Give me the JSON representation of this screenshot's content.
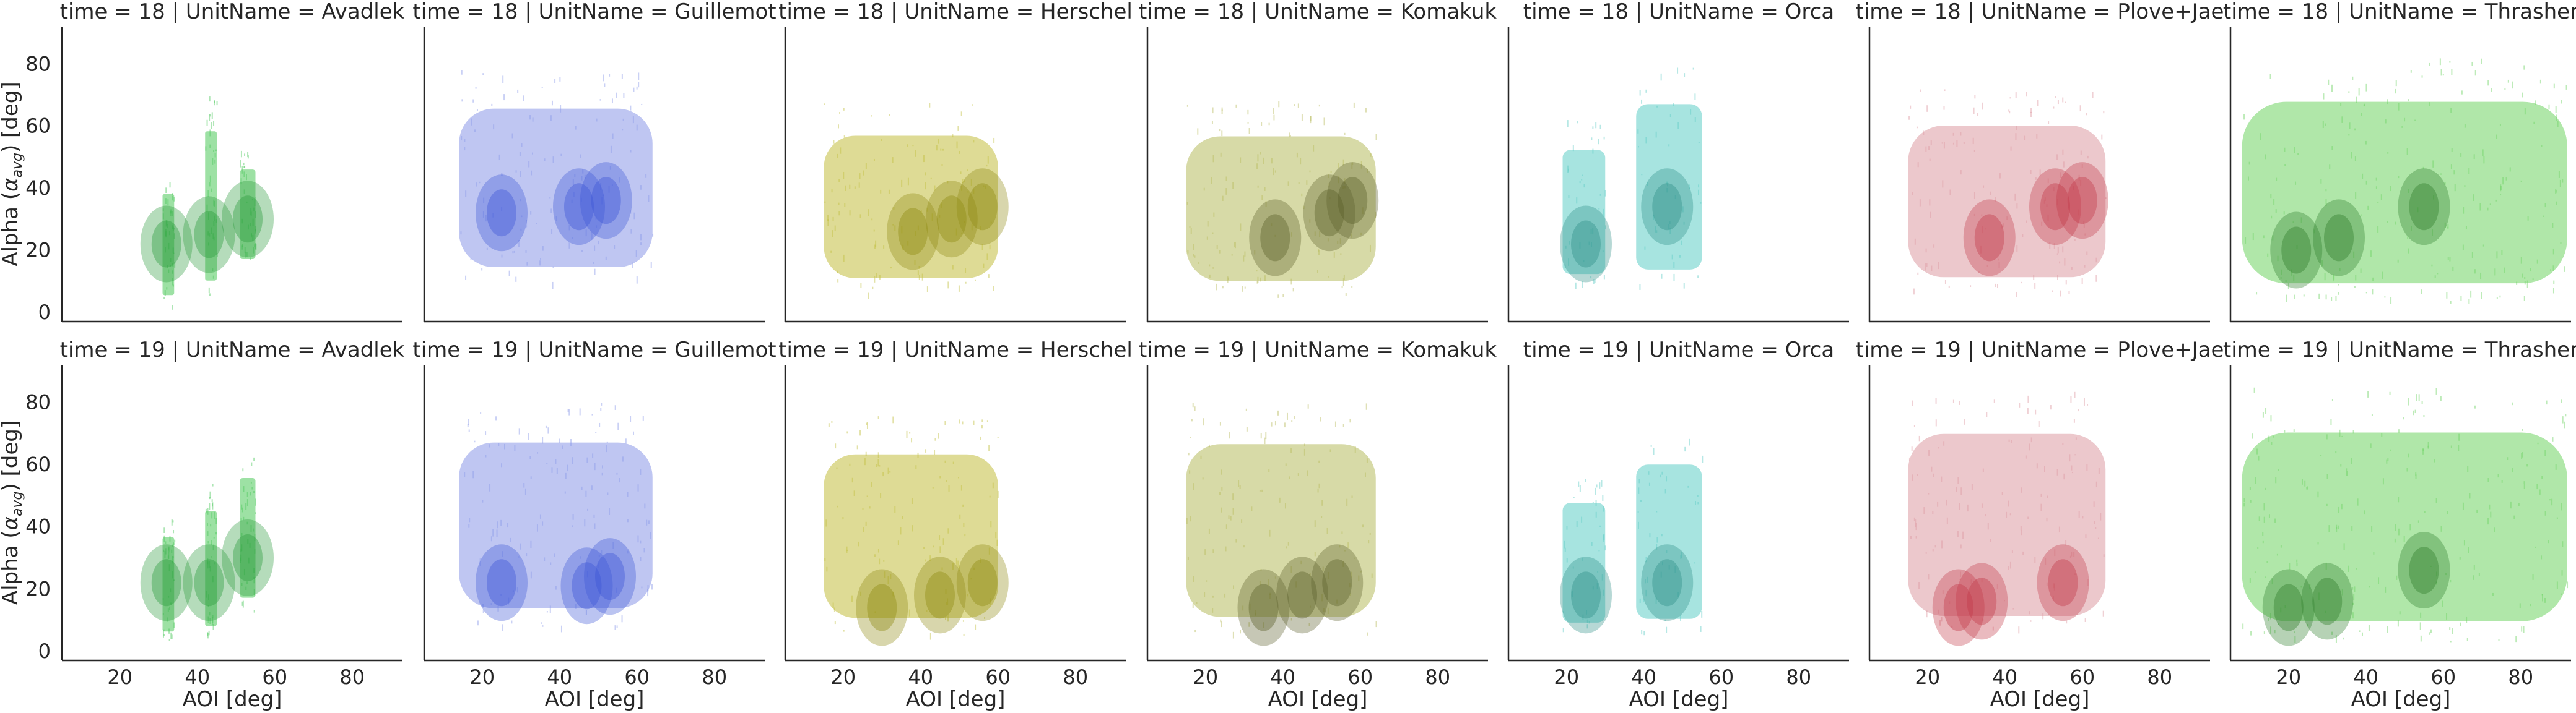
{
  "chart_data": {
    "type": "scatter",
    "layout": "facet-grid",
    "row_variable": "time",
    "col_variable": "UnitName",
    "rows": [
      18,
      19
    ],
    "columns": [
      "Avadlek",
      "Guillemot",
      "Herschel",
      "Komakuk",
      "Orca",
      "Plove+Jae",
      "Thrasher"
    ],
    "facet_titles": [
      [
        "time = 18 | UnitName = Avadlek",
        "time = 18 | UnitName = Guillemot",
        "time = 18 | UnitName = Herschel",
        "time = 18 | UnitName = Komakuk",
        "time = 18 | UnitName = Orca",
        "time = 18 | UnitName = Plove+Jae",
        "time = 18 | UnitName = Thrasher"
      ],
      [
        "time = 19 | UnitName = Avadlek",
        "time = 19 | UnitName = Guillemot",
        "time = 19 | UnitName = Herschel",
        "time = 19 | UnitName = Komakuk",
        "time = 19 | UnitName = Orca",
        "time = 19 | UnitName = Plove+Jae",
        "time = 19 | UnitName = Thrasher"
      ]
    ],
    "xlabel": "AOI [deg]",
    "ylabel_main": "Alpha (",
    "ylabel_sym": "α",
    "ylabel_sub": "avg",
    "ylabel_end": ") [deg]",
    "xlim": [
      5,
      93
    ],
    "ylim": [
      -3,
      92
    ],
    "xticks": [
      "20",
      "40",
      "60",
      "80"
    ],
    "yticks": [
      "0",
      "20",
      "40",
      "60",
      "80"
    ],
    "xtick_values": [
      20,
      40,
      60,
      80
    ],
    "ytick_values": [
      0,
      20,
      40,
      60,
      80
    ],
    "grid": false,
    "shared_axes": true,
    "colors": {
      "Avadlek": "#4cc85a",
      "Guillemot": "#8a98e8",
      "Herschel": "#c2be3e",
      "Komakuk": "#b7bb5e",
      "Orca": "#5fcdc6",
      "Plove+Jae": "#dd9aa2",
      "Thrasher": "#6fd363"
    },
    "dense_colors": {
      "Avadlek": "#2a9a3c",
      "Guillemot": "#3c55d8",
      "Herschel": "#8f8a12",
      "Komakuk": "#5b5e2a",
      "Orca": "#2f8f88",
      "Plove+Jae": "#c23a48",
      "Thrasher": "#2f7d2b"
    },
    "series": [
      {
        "time": 18,
        "unit": "Avadlek",
        "bands": [
          [
            31,
            34,
            2,
            46
          ],
          [
            42,
            45,
            5,
            70
          ],
          [
            51,
            55,
            14,
            53
          ]
        ],
        "hot": [
          [
            32,
            22
          ],
          [
            43,
            25
          ],
          [
            53,
            30
          ]
        ]
      },
      {
        "time": 18,
        "unit": "Guillemot",
        "bands": [
          [
            14,
            64,
            9,
            78
          ]
        ],
        "hot": [
          [
            45,
            34
          ],
          [
            52,
            36
          ],
          [
            25,
            32
          ]
        ]
      },
      {
        "time": 18,
        "unit": "Herschel",
        "bands": [
          [
            15,
            60,
            6,
            68
          ]
        ],
        "hot": [
          [
            38,
            26
          ],
          [
            48,
            30
          ],
          [
            56,
            34
          ]
        ]
      },
      {
        "time": 18,
        "unit": "Komakuk",
        "bands": [
          [
            15,
            64,
            5,
            68
          ]
        ],
        "hot": [
          [
            38,
            24
          ],
          [
            52,
            32
          ],
          [
            58,
            36
          ]
        ]
      },
      {
        "time": 18,
        "unit": "Orca",
        "bands": [
          [
            19,
            30,
            8,
            62
          ],
          [
            38,
            55,
            8,
            80
          ]
        ],
        "hot": [
          [
            25,
            22
          ],
          [
            46,
            34
          ]
        ]
      },
      {
        "time": 18,
        "unit": "Plove+Jae",
        "bands": [
          [
            15,
            66,
            6,
            72
          ]
        ],
        "hot": [
          [
            36,
            24
          ],
          [
            53,
            34
          ],
          [
            60,
            36
          ]
        ]
      },
      {
        "time": 18,
        "unit": "Thrasher",
        "bands": [
          [
            8,
            92,
            3,
            82
          ]
        ],
        "hot": [
          [
            33,
            24
          ],
          [
            55,
            34
          ],
          [
            22,
            20
          ]
        ]
      },
      {
        "time": 19,
        "unit": "Avadlek",
        "bands": [
          [
            31,
            34,
            3,
            44
          ],
          [
            42,
            45,
            4,
            54
          ],
          [
            51,
            55,
            13,
            65
          ]
        ],
        "hot": [
          [
            32,
            22
          ],
          [
            43,
            22
          ],
          [
            53,
            30
          ]
        ]
      },
      {
        "time": 19,
        "unit": "Guillemot",
        "bands": [
          [
            14,
            64,
            8,
            80
          ]
        ],
        "hot": [
          [
            47,
            21
          ],
          [
            53,
            24
          ],
          [
            25,
            22
          ]
        ]
      },
      {
        "time": 19,
        "unit": "Herschel",
        "bands": [
          [
            15,
            60,
            5,
            76
          ]
        ],
        "hot": [
          [
            30,
            14
          ],
          [
            45,
            18
          ],
          [
            56,
            22
          ]
        ]
      },
      {
        "time": 19,
        "unit": "Komakuk",
        "bands": [
          [
            15,
            64,
            5,
            80
          ]
        ],
        "hot": [
          [
            35,
            14
          ],
          [
            54,
            22
          ],
          [
            45,
            18
          ]
        ]
      },
      {
        "time": 19,
        "unit": "Orca",
        "bands": [
          [
            19,
            30,
            5,
            57
          ],
          [
            38,
            55,
            5,
            72
          ]
        ],
        "hot": [
          [
            25,
            18
          ],
          [
            46,
            22
          ]
        ]
      },
      {
        "time": 19,
        "unit": "Plove+Jae",
        "bands": [
          [
            15,
            66,
            5,
            84
          ]
        ],
        "hot": [
          [
            34,
            16
          ],
          [
            55,
            22
          ],
          [
            28,
            14
          ]
        ]
      },
      {
        "time": 19,
        "unit": "Thrasher",
        "bands": [
          [
            8,
            92,
            3,
            85
          ]
        ],
        "hot": [
          [
            30,
            16
          ],
          [
            55,
            26
          ],
          [
            20,
            14
          ]
        ]
      }
    ]
  }
}
